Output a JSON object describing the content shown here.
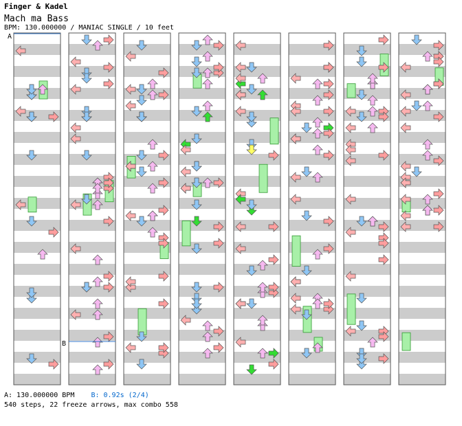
{
  "header": {
    "artist": "Finger & Kadel",
    "title": "Mach ma Bass",
    "info": "BPM: 130.000000 / MANIAC SINGLE / 10 feet"
  },
  "markers": {
    "a": "A",
    "b": "B"
  },
  "footer": {
    "bpm_label": "A: 130.000000 BPM",
    "stop_label": "B: 0.92s (2/4)",
    "stats": "540 steps, 22 freeze arrows, max combo 558"
  },
  "colors": {
    "left": "#ffb0b0",
    "down": "#8fc6f5",
    "up": "#f6b9f0",
    "right": "#ff9e9e",
    "freeze": "#a8f0a8",
    "yellow": "#ffff66",
    "green": "#33dd33",
    "band": "#cccccc"
  }
}
